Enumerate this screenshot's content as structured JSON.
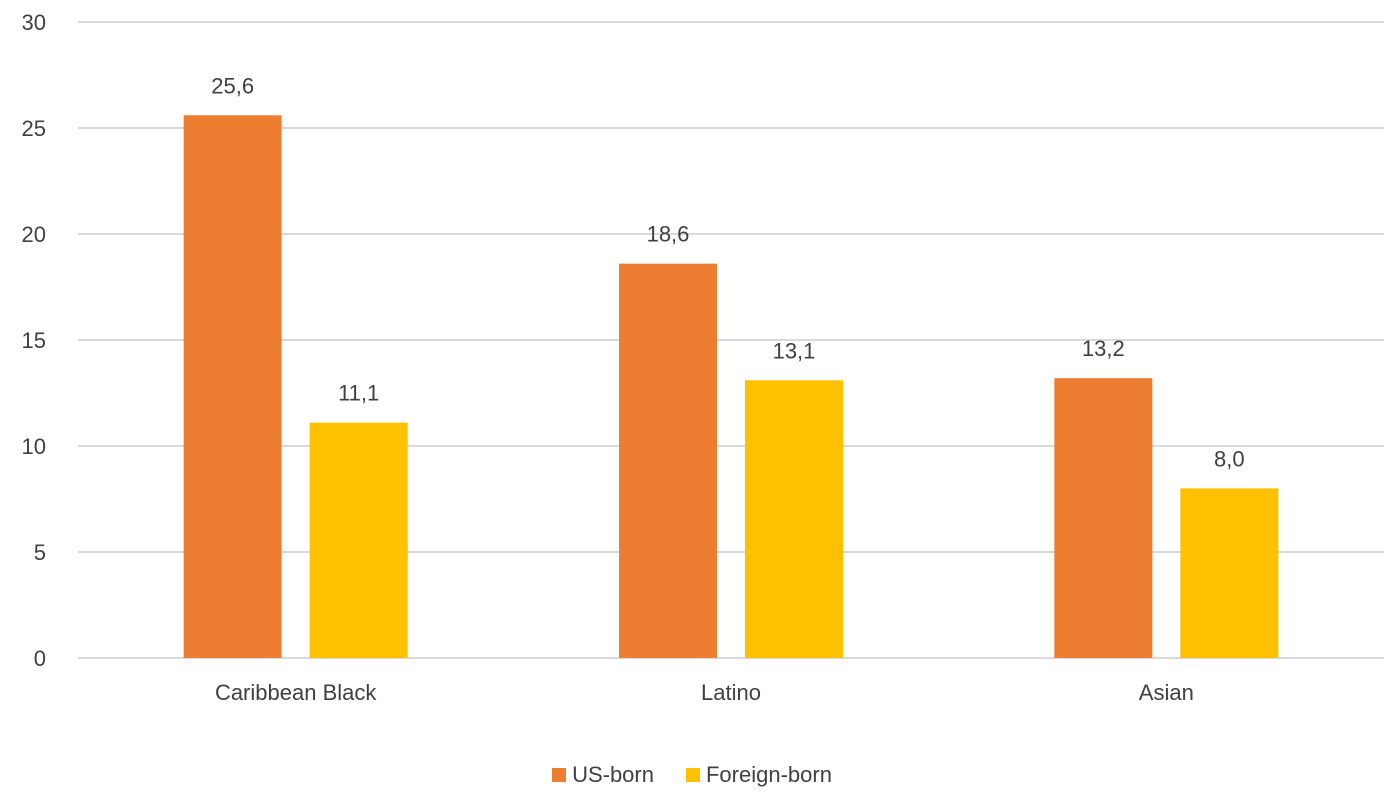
{
  "chart_data": {
    "type": "bar",
    "categories": [
      "Caribbean Black",
      "Latino",
      "Asian"
    ],
    "series": [
      {
        "name": "US-born",
        "values": [
          25.6,
          18.6,
          13.2
        ],
        "labels": [
          "25,6",
          "18,6",
          "13,2"
        ],
        "color": "#ED7D31"
      },
      {
        "name": "Foreign-born",
        "values": [
          11.1,
          13.1,
          8.0
        ],
        "labels": [
          "11,1",
          "13,1",
          "8,0"
        ],
        "color": "#FFC000"
      }
    ],
    "ylim": [
      0,
      30
    ],
    "yticks": [
      0,
      5,
      10,
      15,
      20,
      25,
      30
    ],
    "ytick_labels": [
      "0",
      "5",
      "10",
      "15",
      "20",
      "25",
      "30"
    ],
    "grid": true,
    "legend_position": "bottom",
    "title": "",
    "xlabel": "",
    "ylabel": "",
    "gridline_color": "#D9D9D9"
  }
}
